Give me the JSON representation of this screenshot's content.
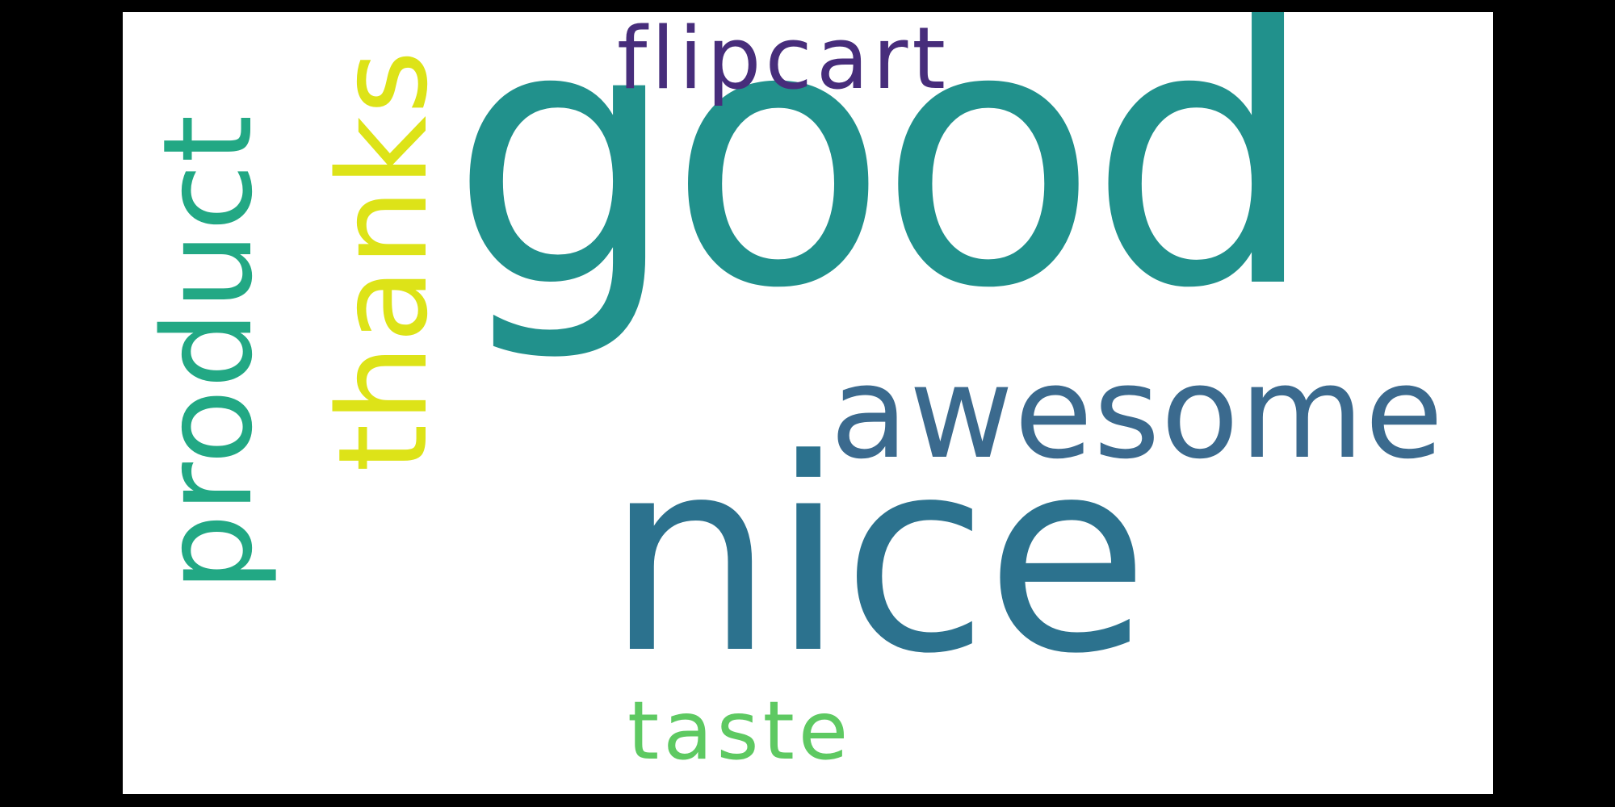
{
  "words": [
    {
      "id": "good",
      "text": "good",
      "color": "#21918c",
      "orientation": "horizontal"
    },
    {
      "id": "nice",
      "text": "nice",
      "color": "#2c728e",
      "orientation": "horizontal"
    },
    {
      "id": "awesome",
      "text": "awesome",
      "color": "#3b6a8e",
      "orientation": "horizontal"
    },
    {
      "id": "thanks",
      "text": "thanks",
      "color": "#dde318",
      "orientation": "vertical"
    },
    {
      "id": "product",
      "text": "product",
      "color": "#22a884",
      "orientation": "vertical"
    },
    {
      "id": "flipcart",
      "text": "flipcart",
      "color": "#472d7b",
      "orientation": "horizontal"
    },
    {
      "id": "taste",
      "text": "taste",
      "color": "#5ec962",
      "orientation": "horizontal"
    }
  ]
}
